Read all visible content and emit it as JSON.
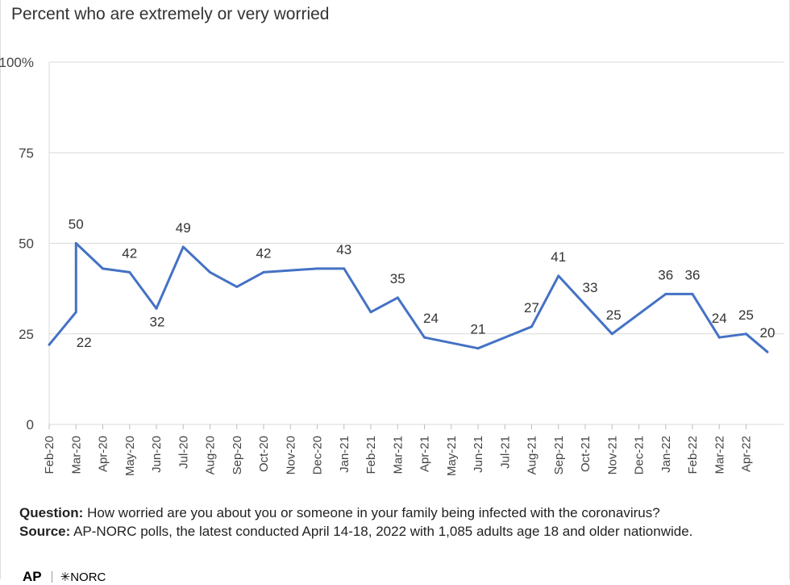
{
  "title": "Percent who are extremely or very worried",
  "colors": {
    "line": "#4472C4",
    "grid": "#d9d9d9",
    "text": "#333333"
  },
  "chart_data": {
    "type": "line",
    "title": "Percent who are extremely or very worried",
    "ylim": [
      0,
      100
    ],
    "y_ticks": [
      0,
      25,
      50,
      75,
      100
    ],
    "y_tick_labels": [
      "0",
      "25",
      "50",
      "75",
      "100%"
    ],
    "grid": true,
    "x_labels": [
      "Feb-20",
      "Mar-20",
      "Apr-20",
      "May-20",
      "Jun-20",
      "Jul-20",
      "Aug-20",
      "Sep-20",
      "Oct-20",
      "Nov-20",
      "Dec-20",
      "Jan-21",
      "Feb-21",
      "Mar-21",
      "Apr-21",
      "May-21",
      "Jun-21",
      "Jul-21",
      "Aug-21",
      "Sep-21",
      "Oct-21",
      "Nov-21",
      "Dec-21",
      "Jan-22",
      "Feb-22",
      "Mar-22",
      "Apr-22"
    ],
    "points": [
      {
        "x": "Feb-20",
        "y": 22
      },
      {
        "x": "Mar-20",
        "y": 31
      },
      {
        "x": "Mar-20",
        "y": 50,
        "label": "50"
      },
      {
        "x": "Apr-20",
        "y": 43
      },
      {
        "x": "May-20",
        "y": 42,
        "label": "42"
      },
      {
        "x": "Jun-20",
        "y": 32,
        "label": "32"
      },
      {
        "x": "Jul-20",
        "y": 49,
        "label": "49"
      },
      {
        "x": "Aug-20",
        "y": 42
      },
      {
        "x": "Sep-20",
        "y": 38
      },
      {
        "x": "Oct-20",
        "y": 42,
        "label": "42"
      },
      {
        "x": "Dec-20",
        "y": 43
      },
      {
        "x": "Jan-21",
        "y": 43,
        "label": "43"
      },
      {
        "x": "Feb-21",
        "y": 31
      },
      {
        "x": "Mar-21",
        "y": 35,
        "label": "35"
      },
      {
        "x": "Apr-21",
        "y": 24,
        "label": "24"
      },
      {
        "x": "Jun-21",
        "y": 21,
        "label": "21"
      },
      {
        "x": "Aug-21",
        "y": 27,
        "label": "27"
      },
      {
        "x": "Sep-21",
        "y": 41,
        "label": "41"
      },
      {
        "x": "Oct-21",
        "y": 33,
        "label": "33"
      },
      {
        "x": "Nov-21",
        "y": 25,
        "label": "25"
      },
      {
        "x": "Jan-22",
        "y": 36,
        "label": "36"
      },
      {
        "x": "Feb-22",
        "y": 36,
        "label": "36"
      },
      {
        "x": "Mar-22",
        "y": 24,
        "label": "24"
      },
      {
        "x": "Apr-22",
        "y": 25,
        "label": "25"
      },
      {
        "x": "Apr-22+",
        "y": 20,
        "label": "20"
      }
    ],
    "extra_labels": [
      {
        "x": "Mar-20",
        "text": "22"
      }
    ]
  },
  "notes": {
    "question_label": "Question:",
    "question_text": " How worried are you about you or someone in your family being infected with the coronavirus?",
    "source_label": "Source:",
    "source_text": "  AP-NORC polls, the latest conducted April 14-18, 2022 with 1,085 adults age 18 and older nationwide."
  },
  "logo": {
    "ap": "AP",
    "norc": "✳NORC"
  }
}
